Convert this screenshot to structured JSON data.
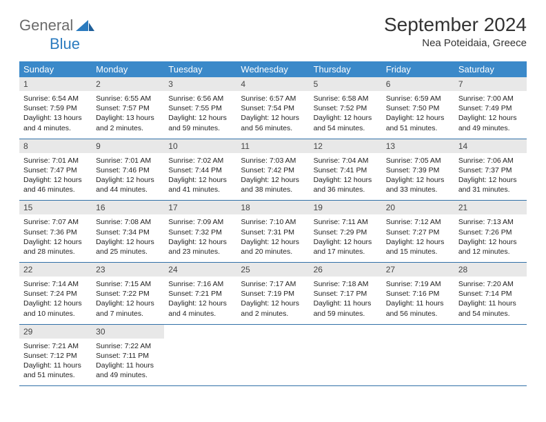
{
  "brand": {
    "part1": "General",
    "part2": "Blue"
  },
  "title": "September 2024",
  "subtitle": "Nea Poteidaia, Greece",
  "colors": {
    "header_bg": "#3b89c9",
    "header_text": "#ffffff",
    "daynum_bg": "#e8e8e8",
    "rule": "#2f6fa6",
    "brand_gray": "#6b6b6b",
    "brand_blue": "#2b7bbf"
  },
  "dow": [
    "Sunday",
    "Monday",
    "Tuesday",
    "Wednesday",
    "Thursday",
    "Friday",
    "Saturday"
  ],
  "days": [
    {
      "n": "1",
      "sr": "6:54 AM",
      "ss": "7:59 PM",
      "dl": "13 hours and 4 minutes."
    },
    {
      "n": "2",
      "sr": "6:55 AM",
      "ss": "7:57 PM",
      "dl": "13 hours and 2 minutes."
    },
    {
      "n": "3",
      "sr": "6:56 AM",
      "ss": "7:55 PM",
      "dl": "12 hours and 59 minutes."
    },
    {
      "n": "4",
      "sr": "6:57 AM",
      "ss": "7:54 PM",
      "dl": "12 hours and 56 minutes."
    },
    {
      "n": "5",
      "sr": "6:58 AM",
      "ss": "7:52 PM",
      "dl": "12 hours and 54 minutes."
    },
    {
      "n": "6",
      "sr": "6:59 AM",
      "ss": "7:50 PM",
      "dl": "12 hours and 51 minutes."
    },
    {
      "n": "7",
      "sr": "7:00 AM",
      "ss": "7:49 PM",
      "dl": "12 hours and 49 minutes."
    },
    {
      "n": "8",
      "sr": "7:01 AM",
      "ss": "7:47 PM",
      "dl": "12 hours and 46 minutes."
    },
    {
      "n": "9",
      "sr": "7:01 AM",
      "ss": "7:46 PM",
      "dl": "12 hours and 44 minutes."
    },
    {
      "n": "10",
      "sr": "7:02 AM",
      "ss": "7:44 PM",
      "dl": "12 hours and 41 minutes."
    },
    {
      "n": "11",
      "sr": "7:03 AM",
      "ss": "7:42 PM",
      "dl": "12 hours and 38 minutes."
    },
    {
      "n": "12",
      "sr": "7:04 AM",
      "ss": "7:41 PM",
      "dl": "12 hours and 36 minutes."
    },
    {
      "n": "13",
      "sr": "7:05 AM",
      "ss": "7:39 PM",
      "dl": "12 hours and 33 minutes."
    },
    {
      "n": "14",
      "sr": "7:06 AM",
      "ss": "7:37 PM",
      "dl": "12 hours and 31 minutes."
    },
    {
      "n": "15",
      "sr": "7:07 AM",
      "ss": "7:36 PM",
      "dl": "12 hours and 28 minutes."
    },
    {
      "n": "16",
      "sr": "7:08 AM",
      "ss": "7:34 PM",
      "dl": "12 hours and 25 minutes."
    },
    {
      "n": "17",
      "sr": "7:09 AM",
      "ss": "7:32 PM",
      "dl": "12 hours and 23 minutes."
    },
    {
      "n": "18",
      "sr": "7:10 AM",
      "ss": "7:31 PM",
      "dl": "12 hours and 20 minutes."
    },
    {
      "n": "19",
      "sr": "7:11 AM",
      "ss": "7:29 PM",
      "dl": "12 hours and 17 minutes."
    },
    {
      "n": "20",
      "sr": "7:12 AM",
      "ss": "7:27 PM",
      "dl": "12 hours and 15 minutes."
    },
    {
      "n": "21",
      "sr": "7:13 AM",
      "ss": "7:26 PM",
      "dl": "12 hours and 12 minutes."
    },
    {
      "n": "22",
      "sr": "7:14 AM",
      "ss": "7:24 PM",
      "dl": "12 hours and 10 minutes."
    },
    {
      "n": "23",
      "sr": "7:15 AM",
      "ss": "7:22 PM",
      "dl": "12 hours and 7 minutes."
    },
    {
      "n": "24",
      "sr": "7:16 AM",
      "ss": "7:21 PM",
      "dl": "12 hours and 4 minutes."
    },
    {
      "n": "25",
      "sr": "7:17 AM",
      "ss": "7:19 PM",
      "dl": "12 hours and 2 minutes."
    },
    {
      "n": "26",
      "sr": "7:18 AM",
      "ss": "7:17 PM",
      "dl": "11 hours and 59 minutes."
    },
    {
      "n": "27",
      "sr": "7:19 AM",
      "ss": "7:16 PM",
      "dl": "11 hours and 56 minutes."
    },
    {
      "n": "28",
      "sr": "7:20 AM",
      "ss": "7:14 PM",
      "dl": "11 hours and 54 minutes."
    },
    {
      "n": "29",
      "sr": "7:21 AM",
      "ss": "7:12 PM",
      "dl": "11 hours and 51 minutes."
    },
    {
      "n": "30",
      "sr": "7:22 AM",
      "ss": "7:11 PM",
      "dl": "11 hours and 49 minutes."
    }
  ],
  "labels": {
    "sunrise": "Sunrise: ",
    "sunset": "Sunset: ",
    "daylight": "Daylight: "
  },
  "layout": {
    "start_offset": 0,
    "total_cells": 35
  }
}
